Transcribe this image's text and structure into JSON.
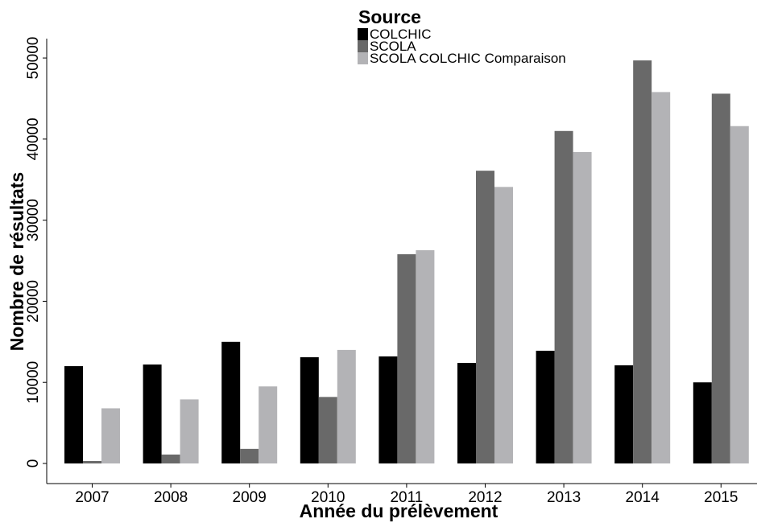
{
  "chart_data": {
    "type": "bar",
    "categories": [
      "2007",
      "2008",
      "2009",
      "2010",
      "2011",
      "2012",
      "2013",
      "2014",
      "2015"
    ],
    "series": [
      {
        "name": "COLCHIC",
        "color": "#000000",
        "values": [
          12000,
          12200,
          15000,
          13100,
          13200,
          12400,
          13900,
          12100,
          10000
        ]
      },
      {
        "name": "SCOLA",
        "color": "#696969",
        "values": [
          300,
          1100,
          1800,
          8200,
          25800,
          36100,
          41000,
          49700,
          45600
        ]
      },
      {
        "name": "SCOLA COLCHIC Comparaison",
        "color": "#b3b3b6",
        "values": [
          6800,
          7900,
          9500,
          14000,
          26300,
          34100,
          38400,
          45800,
          41600
        ]
      }
    ],
    "ylim": [
      0,
      52000
    ],
    "yticks": [
      0,
      10000,
      20000,
      30000,
      40000,
      50000
    ],
    "ytick_labels": [
      "0",
      "10000",
      "20000",
      "30000",
      "40000",
      "50000"
    ],
    "xlabel": "Année du prélèvement",
    "ylabel": "Nombre de résultats",
    "legend": {
      "title": "Source",
      "position": "top-center"
    },
    "grid": false
  }
}
